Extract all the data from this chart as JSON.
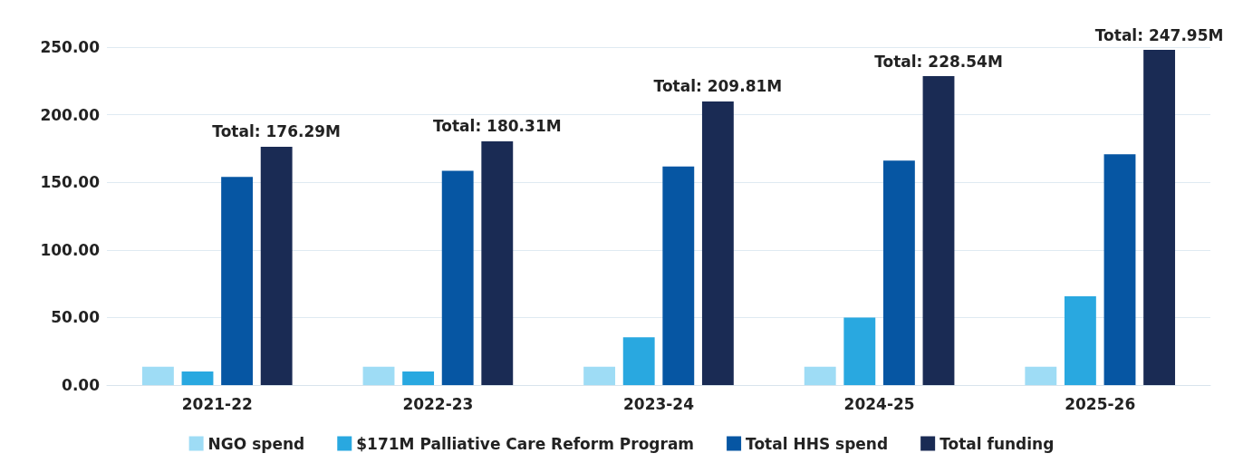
{
  "chart_data": {
    "type": "bar",
    "categories": [
      "2021-22",
      "2022-23",
      "2023-24",
      "2024-25",
      "2025-26"
    ],
    "series": [
      {
        "name": "NGO spend",
        "color": "#9edcf5",
        "values": [
          13.5,
          13.5,
          13.5,
          13.5,
          13.5
        ]
      },
      {
        "name": "$171M Palliative Care Reform Program",
        "color": "#29a8e0",
        "values": [
          10,
          10,
          35.4,
          50,
          65.7
        ]
      },
      {
        "name": "Total HHS spend",
        "color": "#0656a3",
        "values": [
          154,
          158.5,
          161.7,
          166,
          170.7
        ]
      },
      {
        "name": "Total funding",
        "color": "#1a2b54",
        "values": [
          176.29,
          180.31,
          209.81,
          228.54,
          247.95
        ],
        "value_labels": [
          "Total: 176.29M",
          "Total: 180.31M",
          "Total: 209.81M",
          "Total: 228.54M",
          "Total: 247.95M"
        ]
      }
    ],
    "ylim": [
      0,
      250
    ],
    "yticks": [
      {
        "value": 0,
        "label": "0.00"
      },
      {
        "value": 50,
        "label": "50.00"
      },
      {
        "value": 100,
        "label": "100.00"
      },
      {
        "value": 150,
        "label": "150.00"
      },
      {
        "value": 200,
        "label": "200.00"
      },
      {
        "value": 250,
        "label": "250.00"
      }
    ],
    "grid": "y",
    "legend": "bottom"
  }
}
